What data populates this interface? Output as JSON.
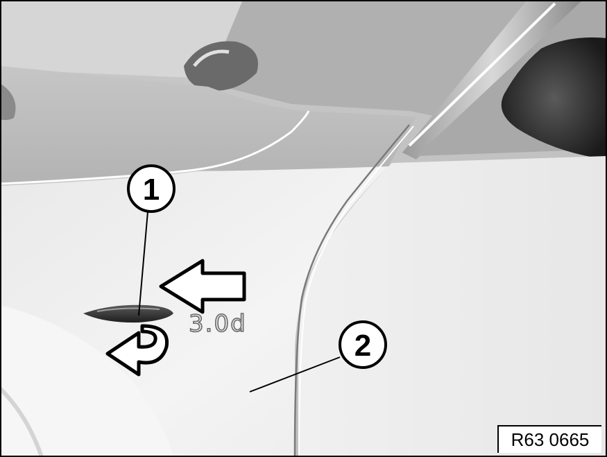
{
  "callouts": [
    {
      "number": "1",
      "part": "side indicator lamp"
    },
    {
      "number": "2",
      "part": "front wing"
    }
  ],
  "badge_text": "3.0d",
  "figure_reference": "R63 0665"
}
